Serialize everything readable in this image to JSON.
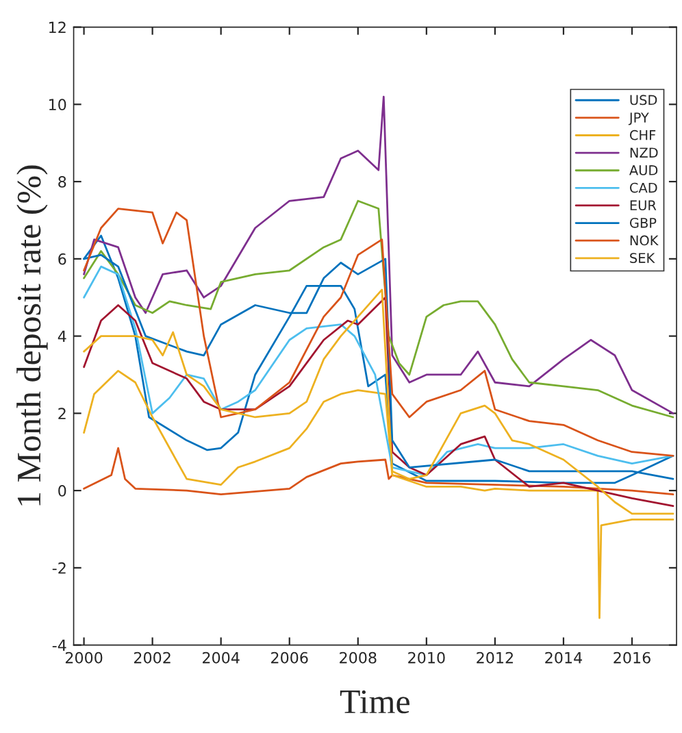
{
  "chart_data": {
    "type": "line",
    "xlabel": "Time",
    "ylabel": "1 Month deposit rate (%)",
    "xlim": [
      1999.7,
      2017.3
    ],
    "ylim": [
      -4,
      12
    ],
    "xticks": [
      2000,
      2002,
      2004,
      2006,
      2008,
      2010,
      2012,
      2014,
      2016
    ],
    "yticks": [
      -4,
      -2,
      0,
      2,
      4,
      6,
      8,
      10,
      12
    ],
    "grid": false,
    "legend": "top right",
    "line_style": "solid",
    "marker": "none",
    "series": [
      {
        "name": "USD",
        "color": "#0072bd",
        "x": [
          2000,
          2000.5,
          2001,
          2001.5,
          2001.9,
          2003,
          2003.6,
          2004,
          2004.5,
          2005,
          2006,
          2006.5,
          2007.5,
          2007.9,
          2008.3,
          2008.8,
          2009,
          2010,
          2012,
          2014,
          2015.5,
          2016,
          2017.2
        ],
        "values": [
          6.0,
          6.6,
          5.5,
          4.0,
          1.9,
          1.3,
          1.05,
          1.1,
          1.5,
          3.0,
          4.5,
          5.3,
          5.3,
          4.7,
          2.7,
          3.0,
          0.7,
          0.25,
          0.25,
          0.2,
          0.2,
          0.4,
          0.9
        ]
      },
      {
        "name": "JPY",
        "color": "#d95319",
        "x": [
          2000,
          2000.8,
          2001,
          2001.2,
          2001.5,
          2003,
          2004,
          2006,
          2006.5,
          2007.5,
          2008,
          2008.8,
          2008.9,
          2009,
          2010,
          2012,
          2014,
          2016,
          2017.2
        ],
        "values": [
          0.05,
          0.4,
          1.1,
          0.3,
          0.05,
          0.0,
          -0.1,
          0.05,
          0.35,
          0.7,
          0.75,
          0.8,
          0.3,
          0.4,
          0.2,
          0.15,
          0.1,
          0.0,
          -0.1
        ]
      },
      {
        "name": "CHF",
        "color": "#edb120",
        "x": [
          2000,
          2000.3,
          2001,
          2001.5,
          2002,
          2003,
          2004,
          2004.5,
          2005,
          2006,
          2006.5,
          2007,
          2007.5,
          2008,
          2008.8,
          2009,
          2010,
          2011,
          2011.7,
          2012,
          2013,
          2014,
          2015.0,
          2015.05,
          2015.1,
          2016,
          2017.2
        ],
        "values": [
          1.5,
          2.5,
          3.1,
          2.8,
          1.9,
          0.3,
          0.15,
          0.6,
          0.75,
          1.1,
          1.6,
          2.3,
          2.5,
          2.6,
          2.5,
          0.4,
          0.1,
          0.1,
          0.0,
          0.05,
          0.0,
          0.0,
          0.0,
          -3.3,
          -0.9,
          -0.75,
          -0.75
        ]
      },
      {
        "name": "NZD",
        "color": "#7e2f8e",
        "x": [
          2000,
          2000.3,
          2001,
          2001.5,
          2001.8,
          2002.3,
          2003,
          2003.5,
          2004,
          2005,
          2006,
          2007,
          2007.5,
          2008,
          2008.6,
          2008.75,
          2009,
          2009.5,
          2010,
          2011,
          2011.5,
          2012,
          2013,
          2014,
          2014.8,
          2015.5,
          2016,
          2017.2
        ],
        "values": [
          5.6,
          6.5,
          6.3,
          5.0,
          4.6,
          5.6,
          5.7,
          5.0,
          5.3,
          6.8,
          7.5,
          7.6,
          8.6,
          8.8,
          8.3,
          10.2,
          3.5,
          2.8,
          3.0,
          3.0,
          3.6,
          2.8,
          2.7,
          3.4,
          3.9,
          3.5,
          2.6,
          2.0
        ]
      },
      {
        "name": "AUD",
        "color": "#77ac30",
        "x": [
          2000,
          2000.5,
          2001,
          2001.5,
          2002,
          2002.5,
          2003,
          2003.7,
          2004,
          2005,
          2006,
          2007,
          2007.5,
          2008,
          2008.6,
          2008.9,
          2009.2,
          2009.5,
          2010,
          2010.5,
          2011,
          2011.5,
          2012,
          2012.5,
          2013,
          2014,
          2015,
          2016,
          2017.2
        ],
        "values": [
          5.5,
          6.2,
          5.6,
          4.8,
          4.6,
          4.9,
          4.8,
          4.7,
          5.4,
          5.6,
          5.7,
          6.3,
          6.5,
          7.5,
          7.3,
          4.0,
          3.3,
          3.0,
          4.5,
          4.8,
          4.9,
          4.9,
          4.3,
          3.4,
          2.8,
          2.7,
          2.6,
          2.2,
          1.9
        ]
      },
      {
        "name": "CAD",
        "color": "#4dbeee",
        "x": [
          2000,
          2000.5,
          2001,
          2001.5,
          2002,
          2002.5,
          2003,
          2003.5,
          2004,
          2004.5,
          2005,
          2006,
          2006.5,
          2007.5,
          2007.9,
          2008.5,
          2009,
          2010,
          2010.6,
          2011.5,
          2012,
          2013,
          2014,
          2015,
          2016,
          2017.2
        ],
        "values": [
          5.0,
          5.8,
          5.6,
          4.2,
          2.0,
          2.4,
          3.0,
          2.9,
          2.1,
          2.3,
          2.6,
          3.9,
          4.2,
          4.3,
          4.0,
          3.0,
          0.6,
          0.4,
          1.0,
          1.2,
          1.1,
          1.1,
          1.2,
          0.9,
          0.7,
          0.9
        ]
      },
      {
        "name": "EUR",
        "color": "#a2142f",
        "x": [
          2000,
          2000.5,
          2001,
          2001.5,
          2002,
          2003,
          2003.5,
          2004,
          2005,
          2006,
          2007,
          2007.7,
          2008,
          2008.8,
          2009,
          2009.5,
          2010,
          2011,
          2011.7,
          2012,
          2013,
          2014,
          2015,
          2016,
          2017.2
        ],
        "values": [
          3.2,
          4.4,
          4.8,
          4.4,
          3.3,
          2.9,
          2.3,
          2.1,
          2.1,
          2.7,
          3.9,
          4.4,
          4.3,
          5.0,
          1.0,
          0.6,
          0.4,
          1.2,
          1.4,
          0.8,
          0.1,
          0.2,
          0.0,
          -0.2,
          -0.4
        ]
      },
      {
        "name": "GBP",
        "color": "#0072bd",
        "x": [
          2000,
          2000.5,
          2001,
          2001.8,
          2003,
          2003.5,
          2004,
          2005,
          2006,
          2006.5,
          2007,
          2007.5,
          2008,
          2008.8,
          2009,
          2009.5,
          2012,
          2013,
          2016,
          2017.2
        ],
        "values": [
          6.0,
          6.1,
          5.8,
          4.0,
          3.6,
          3.5,
          4.3,
          4.8,
          4.6,
          4.6,
          5.5,
          5.9,
          5.6,
          6.0,
          1.3,
          0.6,
          0.8,
          0.5,
          0.5,
          0.3
        ]
      },
      {
        "name": "NOK",
        "color": "#d95319",
        "x": [
          2000,
          2000.5,
          2001,
          2002,
          2002.3,
          2002.7,
          2003,
          2003.5,
          2004,
          2004.5,
          2005,
          2006,
          2007,
          2007.5,
          2008,
          2008.7,
          2009,
          2009.5,
          2010,
          2011,
          2011.7,
          2012,
          2013,
          2014,
          2015,
          2016,
          2017.2
        ],
        "values": [
          5.7,
          6.8,
          7.3,
          7.2,
          6.4,
          7.2,
          7.0,
          4.0,
          1.9,
          2.0,
          2.1,
          2.8,
          4.5,
          5.0,
          6.1,
          6.5,
          2.5,
          1.9,
          2.3,
          2.6,
          3.1,
          2.1,
          1.8,
          1.7,
          1.3,
          1.0,
          0.9
        ]
      },
      {
        "name": "SEK",
        "color": "#edb120",
        "x": [
          2000,
          2000.5,
          2001,
          2001.5,
          2002,
          2002.3,
          2002.6,
          2003,
          2003.5,
          2004,
          2005,
          2006,
          2006.5,
          2007,
          2007.5,
          2008,
          2008.7,
          2009,
          2009.5,
          2010,
          2010.5,
          2011,
          2011.7,
          2012,
          2012.5,
          2013,
          2014,
          2015,
          2015.5,
          2016,
          2017.2
        ],
        "values": [
          3.6,
          4.0,
          4.0,
          4.0,
          3.9,
          3.5,
          4.1,
          3.0,
          2.7,
          2.1,
          1.9,
          2.0,
          2.3,
          3.4,
          4.0,
          4.5,
          5.2,
          0.5,
          0.3,
          0.4,
          1.2,
          2.0,
          2.2,
          2.0,
          1.3,
          1.2,
          0.8,
          0.1,
          -0.3,
          -0.6,
          -0.6
        ]
      }
    ]
  }
}
